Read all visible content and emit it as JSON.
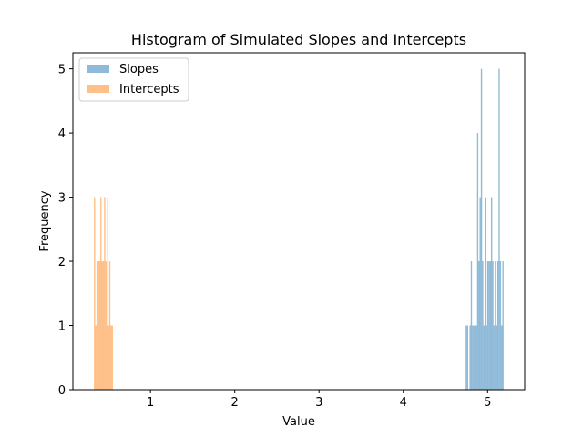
{
  "chart_data": {
    "type": "bar",
    "title": "Histogram of Simulated Slopes and Intercepts",
    "xlabel": "Value",
    "ylabel": "Frequency",
    "xlim": [
      0.08,
      5.44
    ],
    "ylim": [
      0,
      5.25
    ],
    "xticks": [
      1,
      2,
      3,
      4,
      5
    ],
    "yticks": [
      0,
      1,
      2,
      3,
      4,
      5
    ],
    "grid": false,
    "legend": "top-left",
    "bin_width": 0.015,
    "series": [
      {
        "name": "Slopes",
        "color": "#1f77b4",
        "alpha": 0.5,
        "x": [
          4.74,
          4.755,
          4.77,
          4.785,
          4.8,
          4.815,
          4.83,
          4.845,
          4.86,
          4.875,
          4.89,
          4.905,
          4.92,
          4.935,
          4.95,
          4.965,
          4.98,
          4.995,
          5.01,
          5.025,
          5.04,
          5.055,
          5.07,
          5.085,
          5.1,
          5.115,
          5.13,
          5.145,
          5.16,
          5.175,
          5.19
        ],
        "values": [
          1,
          1,
          0,
          1,
          2,
          1,
          1,
          1,
          1,
          4,
          2,
          3,
          5,
          2,
          1,
          3,
          1,
          2,
          2,
          2,
          3,
          2,
          1,
          2,
          1,
          2,
          5,
          2,
          1,
          2,
          0
        ]
      },
      {
        "name": "Intercepts",
        "color": "#ff7f0e",
        "alpha": 0.5,
        "x": [
          0.33,
          0.345,
          0.36,
          0.375,
          0.39,
          0.405,
          0.42,
          0.435,
          0.45,
          0.465,
          0.48,
          0.495,
          0.51,
          0.525,
          0.54
        ],
        "values": [
          3,
          1,
          2,
          2,
          2,
          3,
          2,
          2,
          3,
          2,
          3,
          1,
          2,
          1,
          1
        ]
      }
    ]
  }
}
